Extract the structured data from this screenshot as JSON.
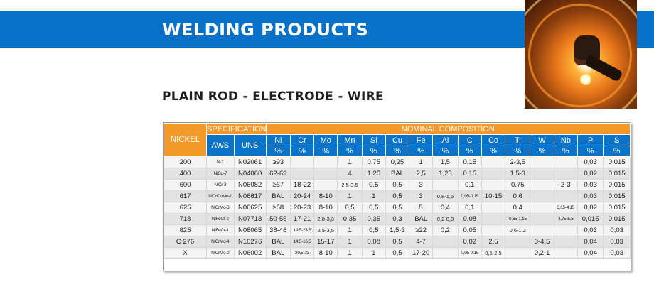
{
  "header": {
    "title": "WELDING PRODUCTS",
    "subtitle": "PLAIN ROD - ELECTRODE - WIRE"
  },
  "photo": {
    "icon": "welder-photo"
  },
  "colors": {
    "banner": "#0a71c8",
    "header_orange": "#f39a2b",
    "header_blue": "#0b74c9"
  },
  "table": {
    "h_nickel": "NICKEL",
    "h_specification": "SPECIFICATION",
    "h_nominal": "NOMINAL COMPOSITION",
    "h_aws": "AWS",
    "h_uns": "UNS",
    "elements": [
      "Ni",
      "Cr",
      "Mo",
      "Mn",
      "Si",
      "Cu",
      "Fe",
      "Al",
      "C",
      "Co",
      "Ti",
      "W",
      "Nb",
      "P",
      "S"
    ],
    "unit": "%",
    "rows": [
      {
        "nickel": "200",
        "aws": "N-1",
        "uns": "N02061",
        "vals": [
          "≥93",
          "",
          "",
          "1",
          "0,75",
          "0,25",
          "1",
          "1,5",
          "0,15",
          "",
          "2-3,5",
          "",
          "",
          "0,03",
          "0,015"
        ]
      },
      {
        "nickel": "400",
        "aws": "NiCu-7",
        "uns": "N04060",
        "vals": [
          "62-69",
          "",
          "",
          "4",
          "1,25",
          "BAL",
          "2,5",
          "1,25",
          "0,15",
          "",
          "1,5-3",
          "",
          "",
          "0,02",
          "0,015"
        ]
      },
      {
        "nickel": "600",
        "aws": "NiCr-3",
        "uns": "N06082",
        "vals": [
          "≥67",
          "18-22",
          "",
          "2,5-3,5",
          "0,5",
          "0,5",
          "3",
          "",
          "0,1",
          "",
          "0,75",
          "",
          "2-3",
          "0,03",
          "0,015"
        ]
      },
      {
        "nickel": "617",
        "aws": "NiCrCoMo-1",
        "uns": "N06617",
        "vals": [
          "BAL",
          "20-24",
          "8-10",
          "1",
          "1",
          "0,5",
          "3",
          "0,8-1,5",
          "0,05-0,15",
          "10-15",
          "0,6",
          "",
          "",
          "0,03",
          "0,015"
        ]
      },
      {
        "nickel": "625",
        "aws": "NiCrMo-3",
        "uns": "N06625",
        "vals": [
          "≥58",
          "20-23",
          "8-10",
          "0,5",
          "0,5",
          "0,5",
          "5",
          "0,4",
          "0,1",
          "",
          "0,4",
          "",
          "3,15-4,15",
          "0,02",
          "0,015"
        ]
      },
      {
        "nickel": "718",
        "aws": "NiFeCr-2",
        "uns": "N07718",
        "vals": [
          "50-55",
          "17-21",
          "2,8-3,3",
          "0,35",
          "0,35",
          "0,3",
          "BAL",
          "0,2-0,8",
          "0,08",
          "",
          "0,65-1,15",
          "",
          "4,75-5,5",
          "0,015",
          "0,015"
        ]
      },
      {
        "nickel": "825",
        "aws": "NiFeCr-1",
        "uns": "N08065",
        "vals": [
          "38-46",
          "19,5-23,5",
          "2,5-3,5",
          "1",
          "0,5",
          "1,5-3",
          "≥22",
          "0,2",
          "0,05",
          "",
          "0,6-1,2",
          "",
          "",
          "0,03",
          "0,03"
        ]
      },
      {
        "nickel": "C 276",
        "aws": "NiCrMo-4",
        "uns": "N10276",
        "vals": [
          "BAL",
          "14,5-16,5",
          "15-17",
          "1",
          "0,08",
          "0,5",
          "4-7",
          "",
          "0,02",
          "2,5",
          "",
          "3-4,5",
          "",
          "0,04",
          "0,03"
        ]
      },
      {
        "nickel": "X",
        "aws": "NiCrMo-2",
        "uns": "N06002",
        "vals": [
          "BAL",
          "20,5-23",
          "8-10",
          "1",
          "1",
          "0,5",
          "17-20",
          "",
          "0,05-0,15",
          "0,5-2,5",
          "",
          "0,2-1",
          "",
          "0,04",
          "0,03"
        ]
      }
    ]
  }
}
